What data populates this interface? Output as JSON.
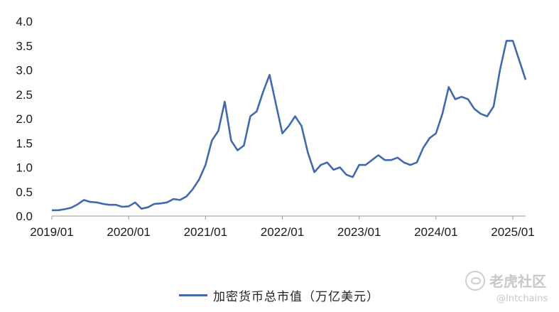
{
  "chart_data": {
    "type": "line",
    "title": "",
    "xlabel": "",
    "ylabel": "",
    "ylim": [
      0,
      4
    ],
    "yticks": [
      "0.0",
      "0.5",
      "1.0",
      "1.5",
      "2.0",
      "2.5",
      "3.0",
      "3.5",
      "4.0"
    ],
    "xticks": [
      "2019/01",
      "2020/01",
      "2021/01",
      "2022/01",
      "2023/01",
      "2024/01",
      "2025/01"
    ],
    "x_range": [
      "2019/01",
      "2025/03"
    ],
    "grid": false,
    "legend_position": "bottom",
    "color": "#4169b0",
    "series": [
      {
        "name": "加密货币总市值（万亿美元）",
        "points": [
          [
            "2019-01",
            0.12
          ],
          [
            "2019-02",
            0.12
          ],
          [
            "2019-03",
            0.14
          ],
          [
            "2019-04",
            0.17
          ],
          [
            "2019-05",
            0.24
          ],
          [
            "2019-06",
            0.33
          ],
          [
            "2019-07",
            0.29
          ],
          [
            "2019-08",
            0.28
          ],
          [
            "2019-09",
            0.25
          ],
          [
            "2019-10",
            0.23
          ],
          [
            "2019-11",
            0.23
          ],
          [
            "2019-12",
            0.19
          ],
          [
            "2020-01",
            0.2
          ],
          [
            "2020-02",
            0.28
          ],
          [
            "2020-03",
            0.15
          ],
          [
            "2020-04",
            0.18
          ],
          [
            "2020-05",
            0.25
          ],
          [
            "2020-06",
            0.26
          ],
          [
            "2020-07",
            0.28
          ],
          [
            "2020-08",
            0.35
          ],
          [
            "2020-09",
            0.33
          ],
          [
            "2020-10",
            0.4
          ],
          [
            "2020-11",
            0.55
          ],
          [
            "2020-12",
            0.75
          ],
          [
            "2021-01",
            1.05
          ],
          [
            "2021-02",
            1.55
          ],
          [
            "2021-03",
            1.75
          ],
          [
            "2021-04",
            2.35
          ],
          [
            "2021-05",
            1.55
          ],
          [
            "2021-06",
            1.35
          ],
          [
            "2021-07",
            1.45
          ],
          [
            "2021-08",
            2.05
          ],
          [
            "2021-09",
            2.15
          ],
          [
            "2021-10",
            2.55
          ],
          [
            "2021-11",
            2.9
          ],
          [
            "2021-12",
            2.3
          ],
          [
            "2022-01",
            1.7
          ],
          [
            "2022-02",
            1.85
          ],
          [
            "2022-03",
            2.05
          ],
          [
            "2022-04",
            1.85
          ],
          [
            "2022-05",
            1.3
          ],
          [
            "2022-06",
            0.9
          ],
          [
            "2022-07",
            1.05
          ],
          [
            "2022-08",
            1.1
          ],
          [
            "2022-09",
            0.95
          ],
          [
            "2022-10",
            1.0
          ],
          [
            "2022-11",
            0.85
          ],
          [
            "2022-12",
            0.8
          ],
          [
            "2023-01",
            1.05
          ],
          [
            "2023-02",
            1.05
          ],
          [
            "2023-03",
            1.15
          ],
          [
            "2023-04",
            1.25
          ],
          [
            "2023-05",
            1.15
          ],
          [
            "2023-06",
            1.15
          ],
          [
            "2023-07",
            1.2
          ],
          [
            "2023-08",
            1.1
          ],
          [
            "2023-09",
            1.05
          ],
          [
            "2023-10",
            1.1
          ],
          [
            "2023-11",
            1.4
          ],
          [
            "2023-12",
            1.6
          ],
          [
            "2024-01",
            1.7
          ],
          [
            "2024-02",
            2.1
          ],
          [
            "2024-03",
            2.65
          ],
          [
            "2024-04",
            2.4
          ],
          [
            "2024-05",
            2.45
          ],
          [
            "2024-06",
            2.4
          ],
          [
            "2024-07",
            2.2
          ],
          [
            "2024-08",
            2.1
          ],
          [
            "2024-09",
            2.05
          ],
          [
            "2024-10",
            2.25
          ],
          [
            "2024-11",
            3.0
          ],
          [
            "2024-12",
            3.6
          ],
          [
            "2025-01",
            3.6
          ],
          [
            "2025-02",
            3.2
          ],
          [
            "2025-03",
            2.8
          ]
        ]
      }
    ]
  },
  "watermark": {
    "brand": "老虎社区",
    "handle": "@Intchains"
  }
}
